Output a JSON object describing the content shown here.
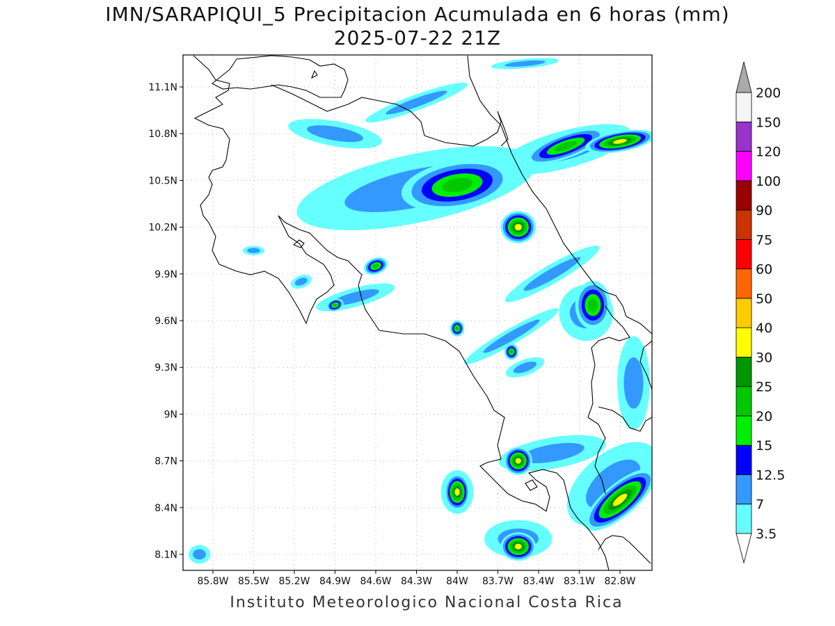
{
  "title": "IMN/SARAPIQUI_5 Precipitacion Acumulada en 6 horas (mm)",
  "subtitle": "2025-07-22 21Z",
  "footer": "Instituto Meteorologico Nacional Costa Rica",
  "map": {
    "lon_range": [
      -86.0,
      -83.0
    ],
    "lat_range": [
      8.0,
      11.3
    ],
    "lat_ticks": [
      {
        "value": 8.1,
        "label": "8.1N"
      },
      {
        "value": 8.4,
        "label": "8.4N"
      },
      {
        "value": 8.7,
        "label": "8.7N"
      },
      {
        "value": 9.0,
        "label": "9N"
      },
      {
        "value": 9.3,
        "label": "9.3N"
      },
      {
        "value": 9.6,
        "label": "9.6N"
      },
      {
        "value": 9.9,
        "label": "9.9N"
      },
      {
        "value": 10.2,
        "label": "10.2N"
      },
      {
        "value": 10.5,
        "label": "10.5N"
      },
      {
        "value": 10.8,
        "label": "10.8N"
      },
      {
        "value": 11.1,
        "label": "11.1N"
      }
    ],
    "lon_ticks": [
      {
        "value": -85.8,
        "label": "85.8W"
      },
      {
        "value": -85.5,
        "label": "85.5W"
      },
      {
        "value": -85.2,
        "label": "85.2W"
      },
      {
        "value": -84.9,
        "label": "84.9W"
      },
      {
        "value": -84.6,
        "label": "84.6W"
      },
      {
        "value": -84.3,
        "label": "84.3W"
      },
      {
        "value": -84.0,
        "label": "84W"
      },
      {
        "value": -83.7,
        "label": "83.7W"
      },
      {
        "value": -83.4,
        "label": "83.4W"
      },
      {
        "value": -83.1,
        "label": "83.1W"
      },
      {
        "value": -82.8,
        "label": "82.8W"
      }
    ],
    "grid": true
  },
  "colorbar": {
    "levels": [
      "3.5",
      "7",
      "12.5",
      "15",
      "20",
      "25",
      "30",
      "40",
      "50",
      "60",
      "75",
      "90",
      "100",
      "120",
      "150",
      "200"
    ],
    "colors": [
      "#66ffff",
      "#3399ff",
      "#0000ff",
      "#00ee00",
      "#00c800",
      "#009600",
      "#ffff00",
      "#ffcc00",
      "#ff6600",
      "#ff0000",
      "#cc3300",
      "#990000",
      "#ff00ff",
      "#9933cc",
      "#f5f5f5",
      "#aaaaaa"
    ]
  },
  "precip_cells": [
    {
      "lon": -84.0,
      "lat": 10.47,
      "rx": 0.32,
      "ry": 0.12,
      "rot": -10,
      "level": 4
    },
    {
      "lon": -83.55,
      "lat": 10.2,
      "rx": 0.1,
      "ry": 0.08,
      "rot": 0,
      "level": 6
    },
    {
      "lon": -83.2,
      "lat": 10.72,
      "rx": 0.25,
      "ry": 0.06,
      "rot": -20,
      "level": 4
    },
    {
      "lon": -82.8,
      "lat": 10.75,
      "rx": 0.2,
      "ry": 0.05,
      "rot": -10,
      "level": 6
    },
    {
      "lon": -83.0,
      "lat": 9.7,
      "rx": 0.1,
      "ry": 0.12,
      "rot": 0,
      "level": 4
    },
    {
      "lon": -83.55,
      "lat": 8.7,
      "rx": 0.08,
      "ry": 0.07,
      "rot": 0,
      "level": 6
    },
    {
      "lon": -84.0,
      "lat": 8.5,
      "rx": 0.07,
      "ry": 0.09,
      "rot": 0,
      "level": 6
    },
    {
      "lon": -82.8,
      "lat": 8.45,
      "rx": 0.25,
      "ry": 0.08,
      "rot": -40,
      "level": 6
    },
    {
      "lon": -83.55,
      "lat": 8.15,
      "rx": 0.1,
      "ry": 0.07,
      "rot": 0,
      "level": 6
    },
    {
      "lon": -84.6,
      "lat": 9.95,
      "rx": 0.07,
      "ry": 0.04,
      "rot": -20,
      "level": 4
    },
    {
      "lon": -84.9,
      "lat": 9.7,
      "rx": 0.05,
      "ry": 0.03,
      "rot": -20,
      "level": 4
    },
    {
      "lon": -84.0,
      "lat": 9.55,
      "rx": 0.04,
      "ry": 0.04,
      "rot": 0,
      "level": 4
    },
    {
      "lon": -83.6,
      "lat": 9.4,
      "rx": 0.04,
      "ry": 0.04,
      "rot": 0,
      "level": 4
    }
  ]
}
